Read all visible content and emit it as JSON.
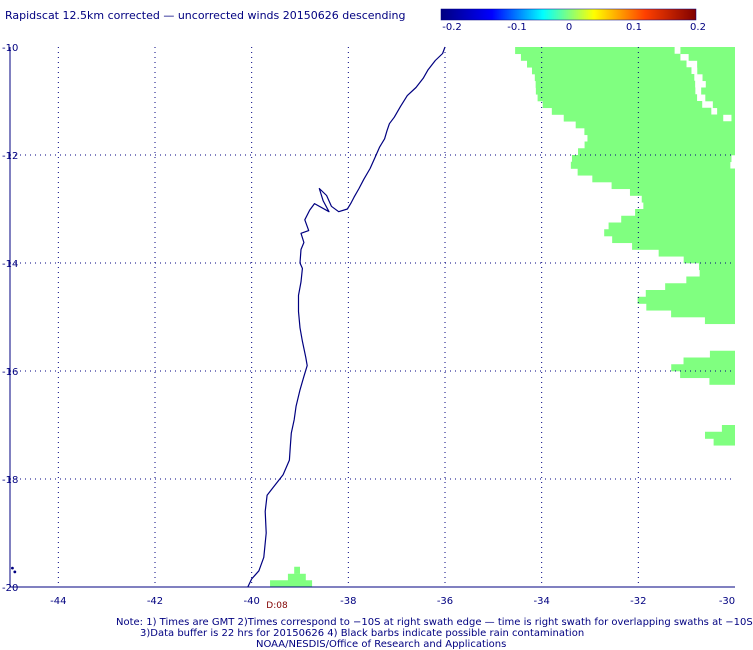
{
  "title": "Rapidscat 12.5km corrected — uncorrected winds 20150626 descending",
  "colorbar": {
    "ticks": [
      "-0.2",
      "-0.1",
      "0",
      "0.1",
      "0.2"
    ],
    "colors": [
      "#000080",
      "#0000ff",
      "#00ffff",
      "#ffff00",
      "#ff4000",
      "#800000"
    ]
  },
  "axes": {
    "lon_labels": [
      "-44",
      "-42",
      "-40",
      "-38",
      "-36",
      "-34",
      "-32",
      "-30"
    ],
    "lat_labels": [
      "-10",
      "-12",
      "-14",
      "-16",
      "-18",
      "-20"
    ],
    "lon_range": [
      -45,
      -30
    ],
    "lat_range": [
      -20,
      -10
    ],
    "grid": "dotted"
  },
  "swath_color": "#80ff80",
  "coast_color": "#000080",
  "time_label": "D:08",
  "notes": {
    "line1": "Note: 1) Times are GMT 2)Times correspond to −10S at right swath edge — time is right swath for overlapping swaths at −10S",
    "line2": "3)Data buffer is 22 hrs for 20150626 4) Black barbs indicate possible rain contamination",
    "line3": "NOAA/NESDIS/Office of Research and Applications"
  }
}
